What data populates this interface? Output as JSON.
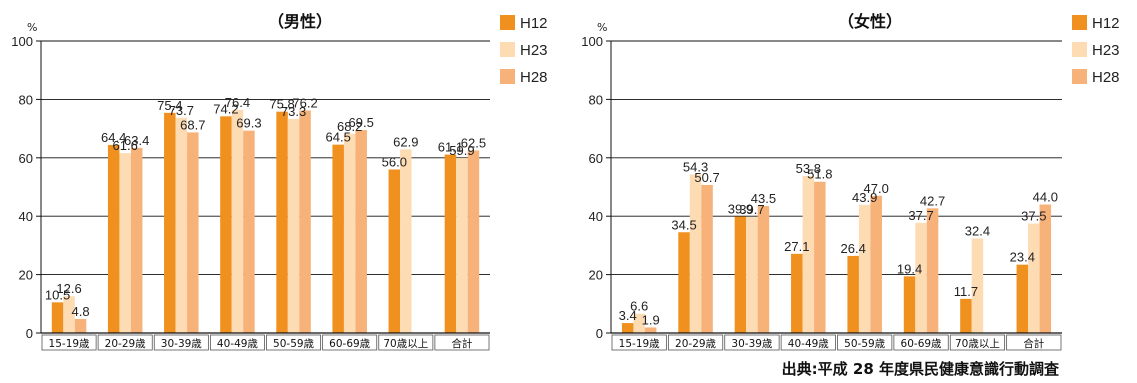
{
  "source_note": "出典:平成 28 年度県民健康意識行動調査",
  "chart_data": [
    {
      "type": "bar",
      "title": "（男性）",
      "ylabel": "%",
      "ylim": [
        0,
        100
      ],
      "yticks": [
        0,
        20,
        40,
        60,
        80,
        100
      ],
      "grid": true,
      "legend_position": "right",
      "categories": [
        "15-19歳",
        "20-29歳",
        "30-39歳",
        "40-49歳",
        "50-59歳",
        "60-69歳",
        "70歳以上",
        "合計"
      ],
      "series": [
        {
          "name": "H12",
          "color": "#f0901e",
          "values": [
            10.5,
            64.4,
            75.4,
            74.2,
            75.8,
            64.5,
            56.0,
            61.1
          ]
        },
        {
          "name": "H23",
          "color": "#fddcb4",
          "values": [
            12.6,
            61.6,
            73.7,
            76.4,
            73.3,
            68.2,
            62.9,
            59.9
          ]
        },
        {
          "name": "H28",
          "color": "#f7b27a",
          "values": [
            4.8,
            63.4,
            68.7,
            69.3,
            76.2,
            69.5,
            null,
            62.5
          ]
        }
      ]
    },
    {
      "type": "bar",
      "title": "（女性）",
      "ylabel": "%",
      "ylim": [
        0,
        100
      ],
      "yticks": [
        0,
        20,
        40,
        60,
        80,
        100
      ],
      "grid": true,
      "legend_position": "right",
      "categories": [
        "15-19歳",
        "20-29歳",
        "30-39歳",
        "40-49歳",
        "50-59歳",
        "60-69歳",
        "70歳以上",
        "合計"
      ],
      "series": [
        {
          "name": "H12",
          "color": "#f0901e",
          "values": [
            3.4,
            34.5,
            39.9,
            27.1,
            26.4,
            19.4,
            11.7,
            23.4
          ]
        },
        {
          "name": "H23",
          "color": "#fddcb4",
          "values": [
            6.6,
            54.3,
            39.7,
            53.8,
            43.9,
            37.7,
            32.4,
            37.5
          ]
        },
        {
          "name": "H28",
          "color": "#f7b27a",
          "values": [
            1.9,
            50.7,
            43.5,
            51.8,
            47.0,
            42.7,
            null,
            44.0
          ]
        }
      ]
    }
  ]
}
